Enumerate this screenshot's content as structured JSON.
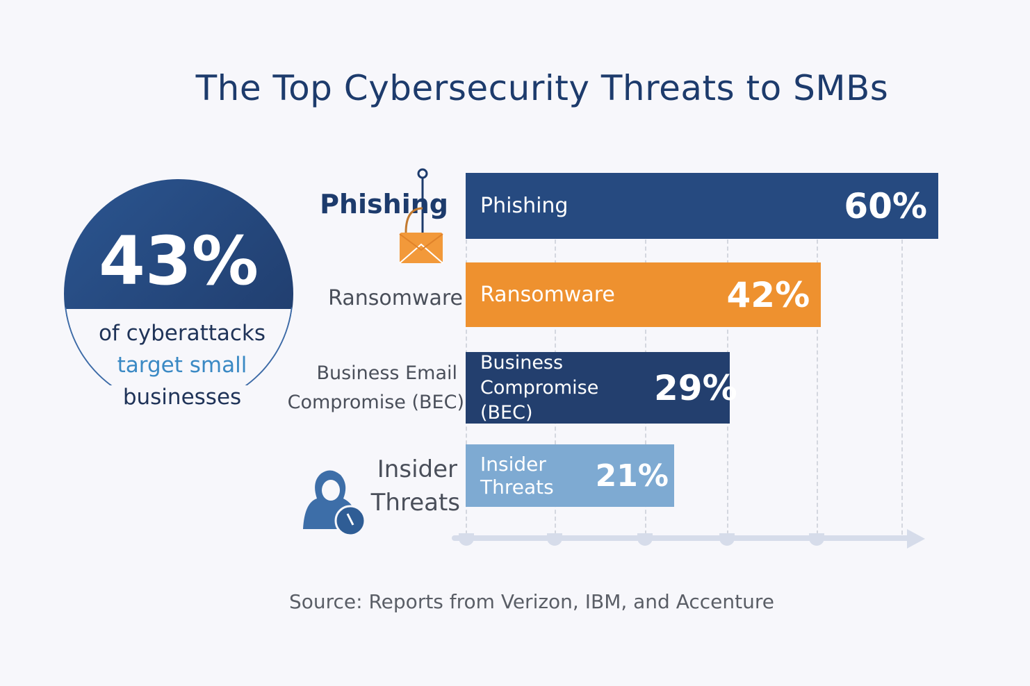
{
  "chart_data": {
    "type": "bar",
    "orientation": "horizontal",
    "title": "The Top Cybersecurity Threats to SMBs",
    "categories": [
      "Phishing",
      "Ransomware",
      "Business Email Compromise (BEC)",
      "Insider Threats"
    ],
    "category_labels": [
      "Phishing",
      "Ransomware",
      "Business Email Compromise (BEC)",
      "Insider Threats"
    ],
    "bar_labels": [
      "Phishing",
      "Ransomware",
      "Business Compromise (BEC)",
      "Insider Threats"
    ],
    "values": [
      60,
      42,
      29,
      21
    ],
    "value_labels": [
      "60%",
      "42%",
      "29%",
      "21%"
    ],
    "colors": [
      "#264a80",
      "#ee912f",
      "#233f6e",
      "#7eaad2"
    ],
    "xlim": [
      0,
      60
    ],
    "grid": true,
    "xlabel": "",
    "ylabel": ""
  },
  "callout": {
    "value": "43%",
    "line1": "of cyberattacks",
    "line2": "target small",
    "line3": "businesses"
  },
  "side_labels": {
    "phishing": "Phishing",
    "ransomware": "Ransomware",
    "bec1": "Business Email",
    "bec2": "Compromise (BEC)",
    "insider1": "Insider",
    "insider2": "Threats"
  },
  "source": "Source: Reports from Verizon, IBM, and Accenture"
}
